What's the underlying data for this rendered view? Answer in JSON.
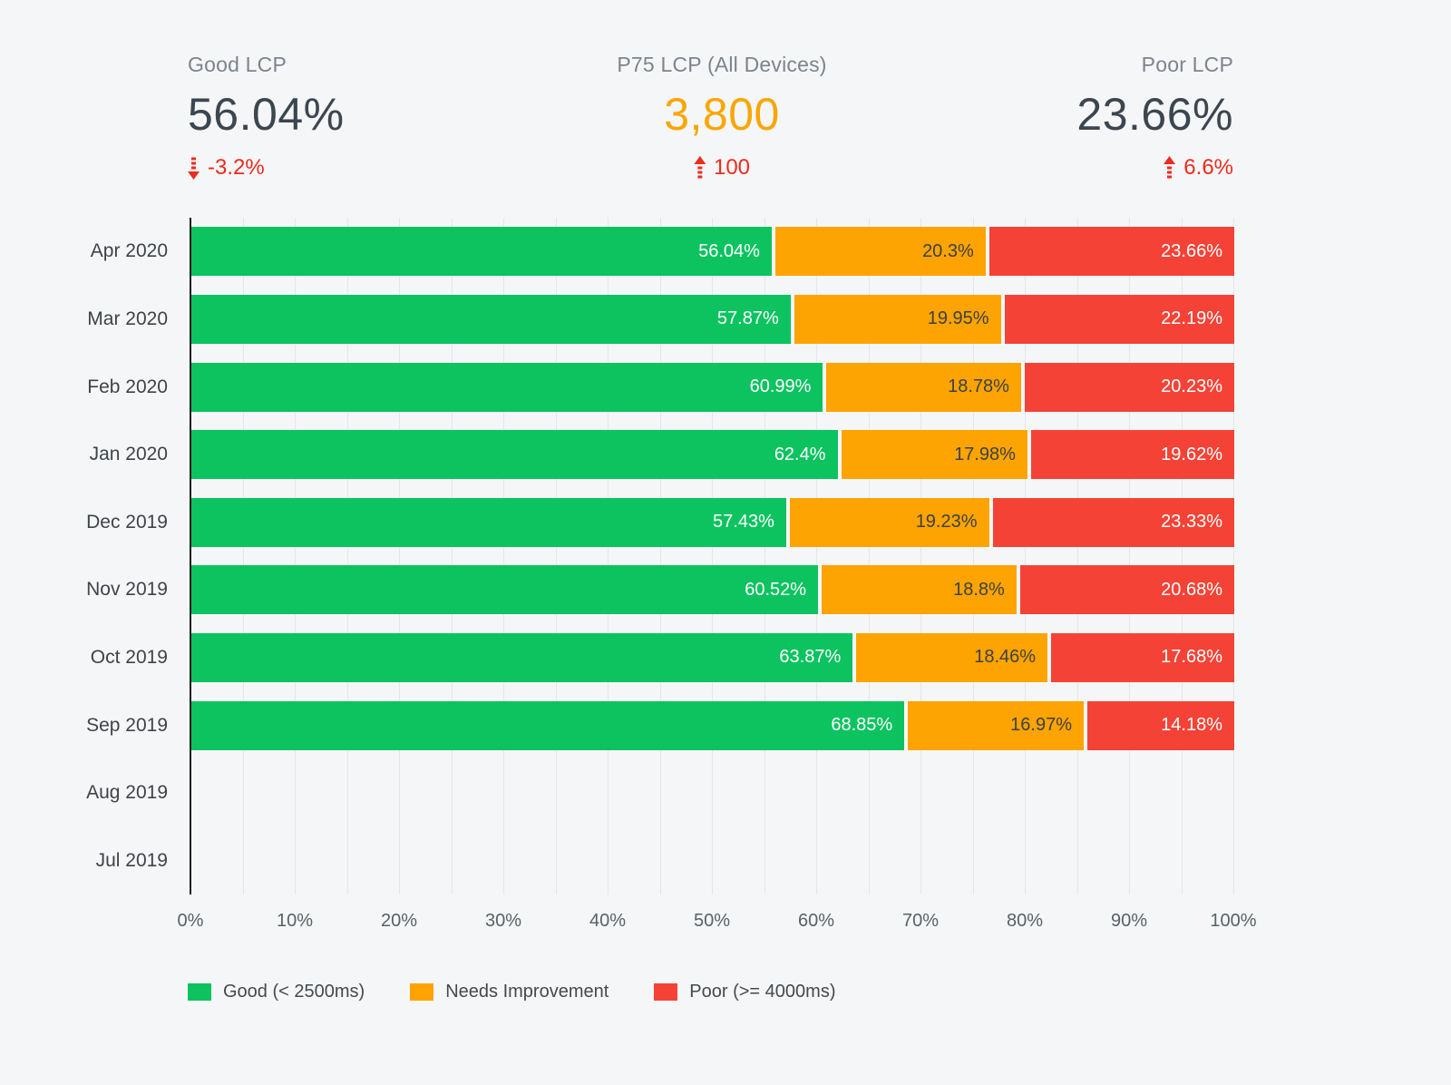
{
  "page": {
    "background": "#f5f6f8"
  },
  "kpis": [
    {
      "label": "Good LCP",
      "value": "56.04%",
      "delta": "-3.2%",
      "direction": "down",
      "delta_color": "#ed2c1c"
    },
    {
      "label": "P75 LCP (All Devices)",
      "value": "3,800",
      "delta": "100",
      "direction": "up",
      "delta_color": "#ed2c1c"
    },
    {
      "label": "Poor LCP",
      "value": "23.66%",
      "delta": "6.6%",
      "direction": "up",
      "delta_color": "#ed2c1c"
    }
  ],
  "chart_data": {
    "type": "bar",
    "stacked": true,
    "orientation": "horizontal",
    "categories": [
      "Apr 2020",
      "Mar 2020",
      "Feb 2020",
      "Jan 2020",
      "Dec 2019",
      "Nov 2019",
      "Oct 2019",
      "Sep 2019",
      "Aug 2019",
      "Jul 2019"
    ],
    "series": [
      {
        "name": "Good (< 2500ms)",
        "color": "#0cc35f",
        "label_color": "#ffffff",
        "values": [
          56.04,
          57.87,
          60.99,
          62.4,
          57.43,
          60.52,
          63.87,
          68.85,
          null,
          null
        ]
      },
      {
        "name": "Needs Improvement",
        "color": "#fda402",
        "label_color": "#3d4043",
        "values": [
          20.3,
          19.95,
          18.78,
          17.98,
          19.23,
          18.8,
          18.46,
          16.97,
          null,
          null
        ]
      },
      {
        "name": "Poor (>= 4000ms)",
        "color": "#f44336",
        "label_color": "#ffffff",
        "values": [
          23.66,
          22.19,
          20.23,
          19.62,
          23.33,
          20.68,
          17.68,
          14.18,
          null,
          null
        ]
      }
    ],
    "x_ticks": [
      "0%",
      "10%",
      "20%",
      "30%",
      "40%",
      "50%",
      "60%",
      "70%",
      "80%",
      "90%",
      "100%"
    ],
    "xlim": [
      0,
      100
    ],
    "grid": {
      "minor_step_pct": 5,
      "color": "#e4e6e9",
      "axis_color": "#191c20"
    },
    "value_suffix": "%",
    "legend_position": "bottom-left",
    "legend": [
      {
        "label": "Good (< 2500ms)",
        "color": "#0cc35f"
      },
      {
        "label": "Needs Improvement",
        "color": "#fda402"
      },
      {
        "label": "Poor (>= 4000ms)",
        "color": "#f44336"
      }
    ]
  }
}
